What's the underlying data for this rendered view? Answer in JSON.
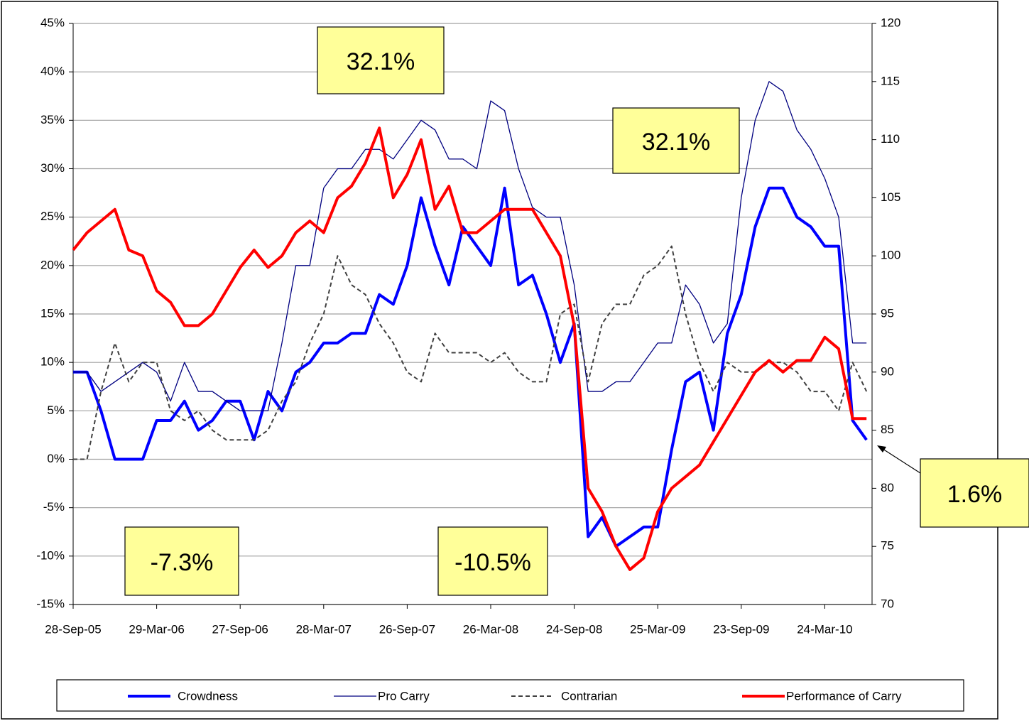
{
  "chart_data": {
    "type": "line",
    "categories": [
      "28-Sep-05",
      null,
      null,
      null,
      null,
      null,
      "29-Mar-06",
      null,
      null,
      null,
      null,
      null,
      "27-Sep-06",
      null,
      null,
      null,
      null,
      null,
      "28-Mar-07",
      null,
      null,
      null,
      null,
      null,
      "26-Sep-07",
      null,
      null,
      null,
      null,
      null,
      "26-Mar-08",
      null,
      null,
      null,
      null,
      null,
      "24-Sep-08",
      null,
      null,
      null,
      null,
      null,
      "25-Mar-09",
      null,
      null,
      null,
      null,
      null,
      "23-Sep-09",
      null,
      null,
      null,
      null,
      null,
      "24-Mar-10",
      null,
      null,
      null
    ],
    "series": [
      {
        "name": "Crowdness",
        "color": "#0000ff",
        "weight": "bold",
        "values": [
          9,
          9,
          5,
          0,
          0,
          0,
          4,
          4,
          6,
          3,
          4,
          6,
          6,
          2,
          7,
          5,
          9,
          10,
          12,
          12,
          13,
          13,
          17,
          16,
          20,
          27,
          22,
          18,
          24,
          22,
          20,
          28,
          18,
          19,
          15,
          10,
          14,
          -8,
          -6,
          -9,
          -8,
          -7,
          -7,
          1,
          8,
          9,
          3,
          13,
          17,
          24,
          28,
          28,
          25,
          24,
          22,
          22,
          4,
          2
        ]
      },
      {
        "name": "Pro Carry",
        "color": "#000080",
        "weight": "normal",
        "values": [
          9,
          9,
          7,
          8,
          9,
          10,
          9,
          6,
          10,
          7,
          7,
          6,
          5,
          5,
          5,
          12,
          20,
          20,
          28,
          30,
          30,
          32,
          32,
          31,
          33,
          35,
          34,
          31,
          31,
          30,
          37,
          36,
          30,
          26,
          25,
          25,
          18,
          7,
          7,
          8,
          8,
          10,
          12,
          12,
          18,
          16,
          12,
          14,
          27,
          35,
          39,
          38,
          34,
          32,
          29,
          25,
          12,
          12
        ]
      },
      {
        "name": "Contrarian",
        "color": "#404040",
        "weight": "dashed",
        "values": [
          0,
          0,
          7,
          12,
          8,
          10,
          10,
          5,
          4,
          5,
          3,
          2,
          2,
          2,
          3,
          6,
          8,
          12,
          15,
          21,
          18,
          17,
          14,
          12,
          9,
          8,
          13,
          11,
          11,
          11,
          10,
          11,
          9,
          8,
          8,
          15,
          16,
          8,
          14,
          16,
          16,
          19,
          20,
          22,
          15,
          10,
          7,
          10,
          9,
          9,
          10,
          10,
          9,
          7,
          7,
          5,
          10,
          7
        ]
      },
      {
        "name": "Performance of Carry",
        "color": "#ff0000",
        "weight": "bold",
        "axis": "y2",
        "values": [
          100.5,
          102,
          103,
          104,
          100.5,
          100,
          97,
          96,
          94,
          94,
          95,
          97,
          99,
          100.5,
          99,
          100,
          102,
          103,
          102,
          105,
          106,
          108,
          111,
          105,
          107,
          110,
          104,
          106,
          102,
          102,
          103,
          104,
          104,
          104,
          102,
          100,
          94,
          80,
          78,
          75,
          73,
          74,
          78,
          80,
          81,
          82,
          84,
          86,
          88,
          90,
          91,
          90,
          91,
          91,
          93,
          92,
          86,
          86
        ]
      }
    ],
    "ylim": [
      -15,
      45
    ],
    "yticks": [
      {
        "value": -15,
        "label": "-15%"
      },
      {
        "value": -10,
        "label": "-10%"
      },
      {
        "value": -5,
        "label": "-5%"
      },
      {
        "value": 0,
        "label": "0%"
      },
      {
        "value": 5,
        "label": "5%"
      },
      {
        "value": 10,
        "label": "10%"
      },
      {
        "value": 15,
        "label": "15%"
      },
      {
        "value": 20,
        "label": "20%"
      },
      {
        "value": 25,
        "label": "25%"
      },
      {
        "value": 30,
        "label": "30%"
      },
      {
        "value": 35,
        "label": "35%"
      },
      {
        "value": 40,
        "label": "40%"
      },
      {
        "value": 45,
        "label": "45%"
      }
    ],
    "y2lim": [
      70,
      120
    ],
    "y2ticks": [
      70,
      75,
      80,
      85,
      90,
      95,
      100,
      105,
      110,
      115,
      120
    ],
    "grid": true,
    "legend": "bottom",
    "annotations": [
      "32.1%",
      "32.1%",
      "-7.3%",
      "-10.5%",
      "1.6%"
    ]
  }
}
